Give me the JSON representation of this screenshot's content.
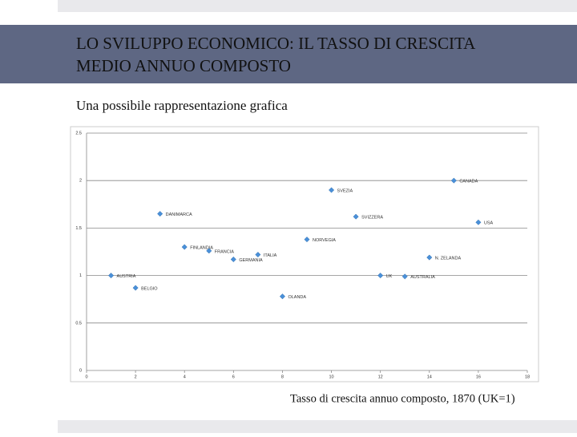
{
  "slide": {
    "title_lines": [
      "LO SVILUPPO ECONOMICO: IL TASSO DI CRESCITA",
      "MEDIO ANNUO COMPOSTO"
    ],
    "subtitle": "Una possibile rappresentazione grafica",
    "caption": "Tasso di crescita annuo composto, 1870 (UK=1)"
  },
  "chart_data": {
    "type": "scatter",
    "color": "#4a90d9",
    "grid": true,
    "x": [
      1,
      2,
      3,
      4,
      5,
      6,
      7,
      8,
      9,
      10,
      11,
      12,
      13,
      14,
      15,
      16
    ],
    "values": [
      1.0,
      0.87,
      1.65,
      1.3,
      1.26,
      1.17,
      1.22,
      0.78,
      1.38,
      1.9,
      1.62,
      1.0,
      0.99,
      1.19,
      2.0,
      1.56
    ],
    "point_labels": [
      "AUSTRIA",
      "BELGIO",
      "DANIMARCA",
      "FINLANDIA",
      "FRANCIA",
      "GERMANIA",
      "ITALIA",
      "OLANDA",
      "NORVEGIA",
      "SVEZIA",
      "SVIZZERA",
      "UK",
      "AUSTRALIA",
      "N. ZELANDA",
      "CANADA",
      "USA"
    ],
    "xlim": [
      0,
      18
    ],
    "xticks": [
      0,
      2,
      4,
      6,
      8,
      10,
      12,
      14,
      16,
      18
    ],
    "ylim": [
      0,
      2.5
    ],
    "yticks": [
      0,
      0.5,
      1,
      1.5,
      2,
      2.5
    ]
  }
}
